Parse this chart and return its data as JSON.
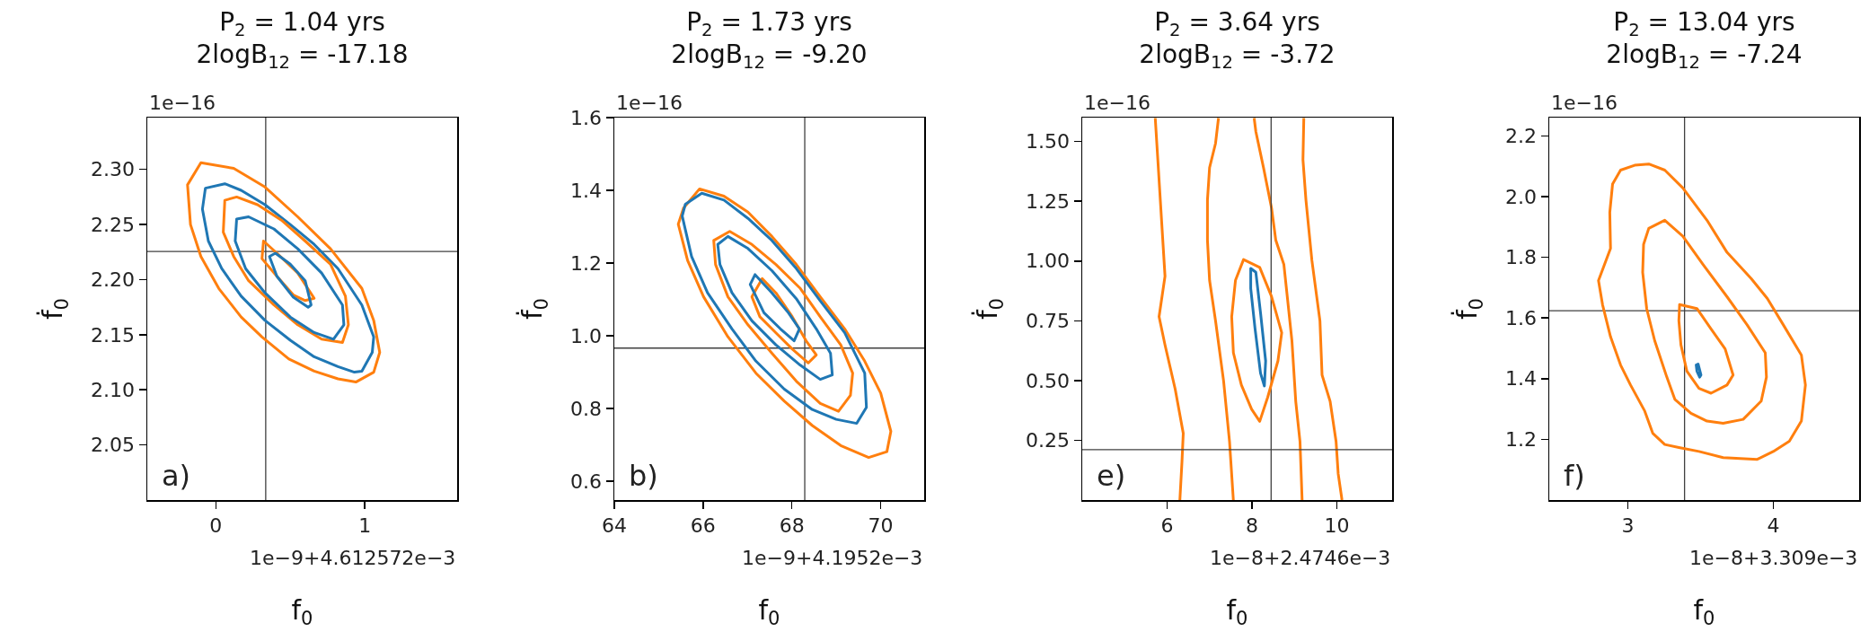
{
  "chart_data": [
    {
      "type": "line",
      "title": "P$_{2}$ = 1.04 yrs\n2logB$_{12}$ = -17.18",
      "xlabel": "f$_{0}$",
      "ylabel": "ḟ$_{0}$",
      "annotations": [
        "1e−16",
        "1e−9+4.612572e−3",
        "a)"
      ],
      "xlim": [
        -0.46,
        1.62
      ],
      "xticks": [
        0,
        1
      ],
      "ylim": [
        2.0,
        2.347
      ],
      "yticks": [
        2.05,
        {
          "value": 2.1,
          "label": "2.10"
        },
        2.15,
        {
          "value": 2.2,
          "label": "2.20"
        },
        2.25,
        {
          "value": 2.3,
          "label": "2.30"
        }
      ],
      "ref_lines": [
        {
          "axis": "x",
          "value": 0.335,
          "color": "#404040"
        },
        {
          "axis": "y",
          "value": 2.2255,
          "color": "#404040"
        }
      ]
    },
    {
      "type": "line",
      "title": "P$_{2}$ = 1.73 yrs\n2logB$_{12}$ = -9.20",
      "xlabel": "f$_{0}$",
      "ylabel": "ḟ$_{0}$",
      "annotations": [
        "1e−16",
        "1e−9+4.1952e−3",
        "b)"
      ],
      "xlim": [
        64,
        70.98
      ],
      "xticks": [
        64,
        66,
        68,
        70
      ],
      "ylim": [
        0.548,
        1.6
      ],
      "yticks": [
        0.6,
        0.8,
        {
          "value": 1.0,
          "label": "1.0"
        },
        1.2,
        1.4,
        1.6
      ],
      "ref_lines": [
        {
          "axis": "x",
          "value": 68.29,
          "color": "#404040"
        },
        {
          "axis": "y",
          "value": 0.966,
          "color": "#404040"
        }
      ]
    },
    {
      "type": "line",
      "title": "P$_{2}$ = 3.64 yrs\n2logB$_{12}$ = -3.72",
      "xlabel": "f$_{0}$",
      "ylabel": "ḟ$_{0}$",
      "annotations": [
        "1e−16",
        "1e−8+2.4746e−3",
        "e)"
      ],
      "xlim": [
        4.0,
        11.3
      ],
      "xticks": [
        6,
        8,
        10
      ],
      "ylim": [
        0,
        1.6
      ],
      "yticks": [
        0.25,
        {
          "value": 0.5,
          "label": "0.50"
        },
        0.75,
        {
          "value": 1.0,
          "label": "1.00"
        },
        1.25,
        {
          "value": 1.5,
          "label": "1.50"
        }
      ],
      "ref_lines": [
        {
          "axis": "x",
          "value": 8.45,
          "color": "#404040"
        },
        {
          "axis": "y",
          "value": 0.211,
          "color": "#404040"
        }
      ],
      "series": [
        {
          "color": "#ff7f0e",
          "x": [
            5.72,
            5.81,
            5.95,
            5.81,
            5.95,
            6.19,
            6.38,
            6.35,
            6.3
          ],
          "values": [
            1.598,
            1.34,
            0.936,
            0.767,
            0.649,
            0.464,
            0.279,
            0.161,
            0.0
          ]
        },
        {
          "color": "#ff7f0e",
          "x": [
            7.21,
            7.14,
            7.0,
            6.95,
            6.95,
            7.0,
            7.14,
            7.33,
            7.47,
            7.56
          ],
          "values": [
            1.598,
            1.492,
            1.391,
            1.256,
            1.087,
            0.919,
            0.75,
            0.498,
            0.245,
            0.0
          ]
        },
        {
          "color": "#ff7f0e",
          "x": [
            8.05,
            8.09,
            8.27,
            8.46,
            8.56,
            8.75,
            8.84,
            8.94,
            9.03,
            9.13,
            9.18
          ],
          "values": [
            1.598,
            1.542,
            1.391,
            1.222,
            1.087,
            0.986,
            0.835,
            0.666,
            0.413,
            0.245,
            0.0
          ]
        },
        {
          "color": "#ff7f0e",
          "x": [
            9.22,
            9.2,
            9.27,
            9.41,
            9.6,
            9.65,
            9.84,
            9.98,
            10.03,
            10.12
          ],
          "values": [
            1.598,
            1.424,
            1.256,
            1.003,
            0.75,
            0.523,
            0.413,
            0.245,
            0.11,
            0.0
          ]
        }
      ]
    },
    {
      "type": "line",
      "title": "P$_{2}$ = 13.04 yrs\n2logB$_{12}$ = -7.24",
      "xlabel": "f$_{0}$",
      "ylabel": "ḟ$_{0}$",
      "annotations": [
        "1e−16",
        "1e−8+3.309e−3",
        "f)"
      ],
      "xlim": [
        2.46,
        4.59
      ],
      "xticks": [
        3,
        4
      ],
      "ylim": [
        1.0,
        2.26
      ],
      "yticks": [
        1.2,
        1.4,
        1.6,
        1.8,
        {
          "value": 2.0,
          "label": "2.0"
        },
        2.2
      ],
      "ref_lines": [
        {
          "axis": "x",
          "value": 3.39,
          "color": "#404040"
        },
        {
          "axis": "y",
          "value": 1.624,
          "color": "#404040"
        }
      ]
    }
  ]
}
